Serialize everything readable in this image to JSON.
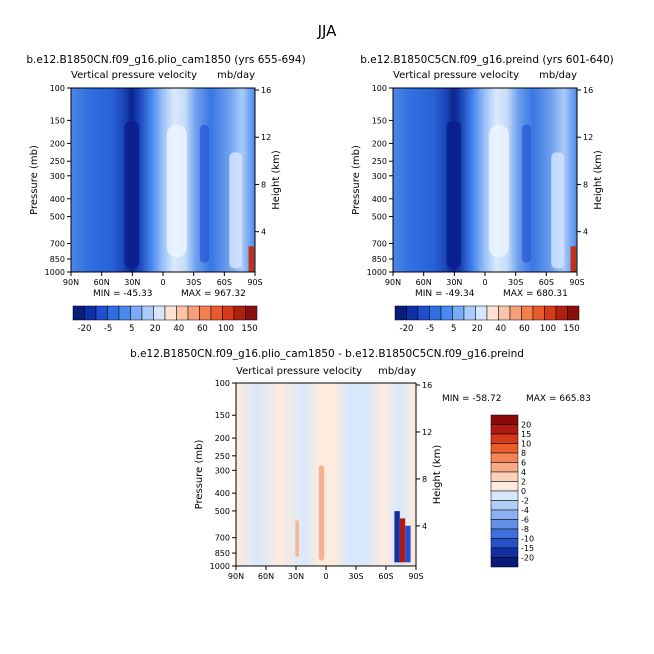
{
  "figure_title": "JJA",
  "chart_data": [
    {
      "type": "heatmap",
      "title": "b.e12.B1850CN.f09_g16.plio_cam1850 (yrs 655-694)",
      "subtitle_left": "Vertical pressure velocity",
      "subtitle_right": "mb/day",
      "xlabel": "",
      "ylabel": "Pressure (mb)",
      "ylabel_right": "Height (km)",
      "x_ticks": [
        "90N",
        "60N",
        "30N",
        "0",
        "30S",
        "60S",
        "90S"
      ],
      "y_ticks": [
        "100",
        "150",
        "200",
        "250",
        "300",
        "400",
        "500",
        "700",
        "850",
        "1000"
      ],
      "y_right_ticks": [
        "16",
        "12",
        "8",
        "4"
      ],
      "min_label": "MIN = -45.33",
      "max_label": "MAX = 967.32",
      "colorbar_labels": [
        "-20",
        "-5",
        "5",
        "20",
        "40",
        "60",
        "100",
        "150"
      ]
    },
    {
      "type": "heatmap",
      "title": "b.e12.B1850C5CN.f09_g16.preind (yrs 601-640)",
      "subtitle_left": "Vertical pressure velocity",
      "subtitle_right": "mb/day",
      "xlabel": "",
      "ylabel": "Pressure (mb)",
      "ylabel_right": "Height (km)",
      "x_ticks": [
        "90N",
        "60N",
        "30N",
        "0",
        "30S",
        "60S",
        "90S"
      ],
      "y_ticks": [
        "100",
        "150",
        "200",
        "250",
        "300",
        "400",
        "500",
        "700",
        "850",
        "1000"
      ],
      "y_right_ticks": [
        "16",
        "12",
        "8",
        "4"
      ],
      "min_label": "MIN = -49.34",
      "max_label": "MAX = 680.31",
      "colorbar_labels": [
        "-20",
        "-5",
        "5",
        "20",
        "40",
        "60",
        "100",
        "150"
      ]
    },
    {
      "type": "heatmap",
      "title": "b.e12.B1850CN.f09_g16.plio_cam1850 - b.e12.B1850C5CN.f09_g16.preind",
      "subtitle_left": "Vertical pressure velocity",
      "subtitle_right": "mb/day",
      "xlabel": "",
      "ylabel": "Pressure (mb)",
      "ylabel_right": "Height (km)",
      "x_ticks": [
        "90N",
        "60N",
        "30N",
        "0",
        "30S",
        "60S",
        "90S"
      ],
      "y_ticks": [
        "100",
        "150",
        "200",
        "250",
        "300",
        "400",
        "500",
        "700",
        "850",
        "1000"
      ],
      "y_right_ticks": [
        "16",
        "12",
        "8",
        "4"
      ],
      "min_label": "MIN = -58.72",
      "max_label": "MAX = 665.83",
      "colorbar_labels": [
        "20",
        "15",
        "10",
        "8",
        "6",
        "4",
        "2",
        "0",
        "-2",
        "-4",
        "-6",
        "-8",
        "-10",
        "-15",
        "-20"
      ]
    }
  ],
  "colors": {
    "deep_blue": "#0a1f8f",
    "blue": "#2f6fe0",
    "light_blue": "#cfe2fb",
    "orange": "#f27f4d",
    "dark_red": "#8a1010"
  },
  "colorbar_colors": [
    "#081d7a",
    "#0d2fa8",
    "#1f4fd0",
    "#2f6fe0",
    "#4a8aef",
    "#7aabf7",
    "#aacbfb",
    "#d6e6fc",
    "#fde1d2",
    "#fbc4a8",
    "#f6a07b",
    "#f27f4d",
    "#e85a2b",
    "#d6391b",
    "#b02010",
    "#8a1010"
  ],
  "diff_colorbar_colors": [
    "#8a0a0a",
    "#b01a10",
    "#d23a1a",
    "#e95c2c",
    "#f48458",
    "#f9a985",
    "#fdd1b9",
    "#fdebdd",
    "#d8e8fb",
    "#b2cdf6",
    "#8cb1f0",
    "#6490e6",
    "#3f6fdc",
    "#2550c8",
    "#1230a0",
    "#0a1a78"
  ]
}
